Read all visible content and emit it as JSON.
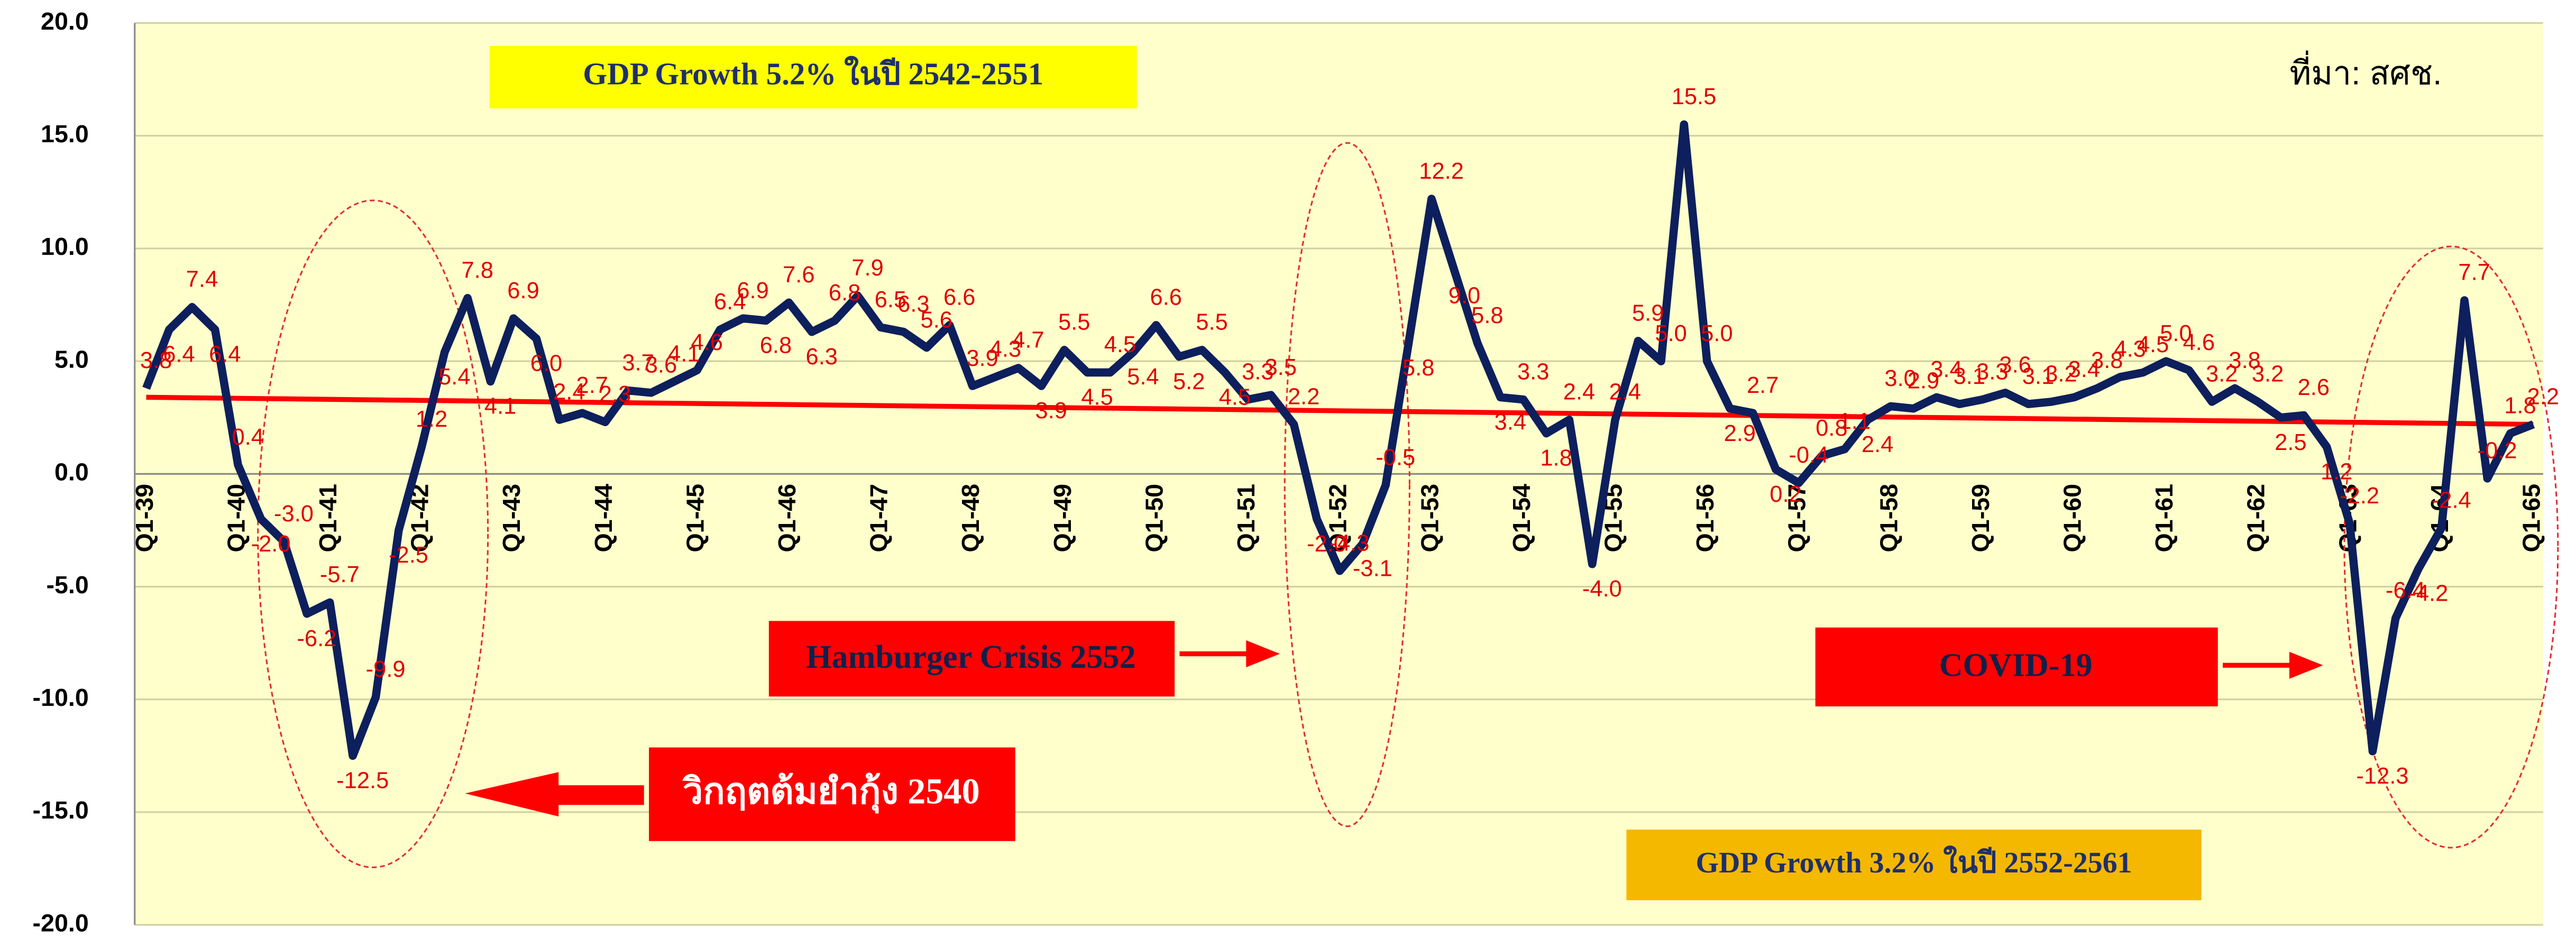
{
  "chart_data": {
    "type": "line",
    "source": "ที่มา: สศช.",
    "annotations": [
      "GDP Growth 5.2% ในปี 2542-2551",
      "Hamburger Crisis 2552",
      "วิกฤตต้มยำกุ้ง 2540",
      "COVID-19",
      "GDP Growth 3.2% ในปี 2552-2561"
    ],
    "categories": [
      "Q1-39",
      null,
      null,
      null,
      "Q1-40",
      null,
      null,
      null,
      "Q1-41",
      null,
      null,
      null,
      "Q1-42",
      null,
      null,
      null,
      "Q1-43",
      null,
      null,
      null,
      "Q1-44",
      null,
      null,
      null,
      "Q1-45",
      null,
      null,
      null,
      "Q1-46",
      null,
      null,
      null,
      "Q1-47",
      null,
      null,
      null,
      "Q1-48",
      null,
      null,
      null,
      "Q1-49",
      null,
      null,
      null,
      "Q1-50",
      null,
      null,
      null,
      "Q1-51",
      null,
      null,
      null,
      "Q1-52",
      null,
      null,
      null,
      "Q1-53",
      null,
      null,
      null,
      "Q1-54",
      null,
      null,
      null,
      "Q1-55",
      null,
      null,
      null,
      "Q1-56",
      null,
      null,
      null,
      "Q1-57",
      null,
      null,
      null,
      "Q1-58",
      null,
      null,
      null,
      "Q1-59",
      null,
      null,
      null,
      "Q1-60",
      null,
      null,
      null,
      "Q1-61",
      null,
      null,
      null,
      "Q1-62",
      null,
      null,
      null,
      "Q1-63",
      null,
      null,
      null,
      "Q1-64",
      null,
      null,
      null,
      "Q1-65"
    ],
    "series": [
      {
        "color": "#0d1f5c",
        "values": [
          3.8,
          6.4,
          7.4,
          6.4,
          0.4,
          -2.0,
          -3.0,
          -6.2,
          -5.7,
          -12.5,
          -9.9,
          -2.5,
          1.2,
          5.4,
          7.8,
          4.1,
          6.9,
          6.0,
          2.4,
          2.7,
          2.3,
          3.7,
          3.6,
          4.1,
          4.6,
          6.4,
          6.9,
          6.8,
          7.6,
          6.3,
          6.8,
          7.9,
          6.5,
          6.3,
          5.6,
          6.6,
          3.9,
          4.3,
          4.7,
          3.9,
          5.5,
          4.5,
          4.5,
          5.4,
          6.6,
          5.2,
          5.5,
          4.5,
          3.3,
          3.5,
          2.2,
          -2.0,
          -4.3,
          -3.1,
          -0.5,
          5.8,
          12.2,
          9.0,
          5.8,
          3.4,
          3.3,
          1.8,
          2.4,
          -4.0,
          2.4,
          5.9,
          5.0,
          15.5,
          5.0,
          2.9,
          2.7,
          0.2,
          -0.4,
          0.8,
          1.1,
          2.4,
          3.0,
          2.9,
          3.4,
          3.1,
          3.3,
          3.6,
          3.1,
          3.2,
          3.4,
          3.8,
          4.3,
          4.5,
          5.0,
          4.6,
          3.2,
          3.8,
          3.2,
          2.5,
          2.6,
          1.2,
          -2.2,
          -12.3,
          -6.4,
          -4.2,
          -2.4,
          7.7,
          -0.2,
          1.8,
          2.2
        ],
        "value_labels": [
          "3.8",
          "6.4",
          "7.4",
          "6.4",
          "0.4",
          "-2.0",
          "-3.0",
          "-6.2",
          "-5.7",
          "-12.5",
          "-9.9",
          "-2.5",
          "1.2",
          "5.4",
          "7.8",
          "4.1",
          "6.9",
          "6.0",
          "2.4",
          "2.7",
          "2.3",
          "3.7",
          "3.6",
          "4.1",
          "4.6",
          "6.4",
          "6.9",
          "6.8",
          "7.6",
          "6.3",
          "6.8",
          "7.9",
          "6.5",
          "6.3",
          "5.6",
          "6.6",
          "3.9",
          "4.3",
          "4.7",
          "3.9",
          "5.5",
          "4.5",
          "4.5",
          "5.4",
          "6.6",
          "5.2",
          "5.5",
          "4.5",
          "3.3",
          "3.5",
          "2.2",
          "-2.0",
          "-4.3",
          "-3.1",
          "-0.5",
          "5.8",
          "12.2",
          "9.0",
          "5.8",
          "3.4",
          "3.3",
          "1.8",
          "2.4",
          "-4.0",
          "2.4",
          "5.9",
          "5.0",
          "15.5",
          "5.0",
          "2.9",
          "2.7",
          "0.2",
          "-0.4",
          "0.8",
          "1.1",
          "2.4",
          "3.0",
          "2.9",
          "3.4",
          "3.1",
          "3.3",
          "3.6",
          "3.1",
          "3.2",
          "3.4",
          "3.8",
          "4.3",
          "4.5",
          "5.0",
          "4.6",
          "3.2",
          "3.8",
          "3.2",
          "2.5",
          "2.6",
          "1.2",
          "-2.2",
          "-12.3",
          "-6.4",
          "-4.2",
          "-2.4",
          "7.7",
          "-0.2",
          "1.8",
          "2.2"
        ]
      }
    ],
    "trend": {
      "color": "#ff0000",
      "values": [
        3.4,
        2.2
      ]
    },
    "ylim": [
      -20,
      20
    ],
    "yticks": [
      {
        "value": -20,
        "label": "-20.0"
      },
      {
        "value": -15,
        "label": "-15.0"
      },
      {
        "value": -10,
        "label": "-10.0"
      },
      {
        "value": -5,
        "label": "-5.0"
      },
      {
        "value": 0,
        "label": "0.0"
      },
      {
        "value": 5,
        "label": "5.0"
      },
      {
        "value": 10,
        "label": "10.0"
      },
      {
        "value": 15,
        "label": "15.0"
      },
      {
        "value": 20,
        "label": "20.0"
      }
    ],
    "grid": true
  }
}
